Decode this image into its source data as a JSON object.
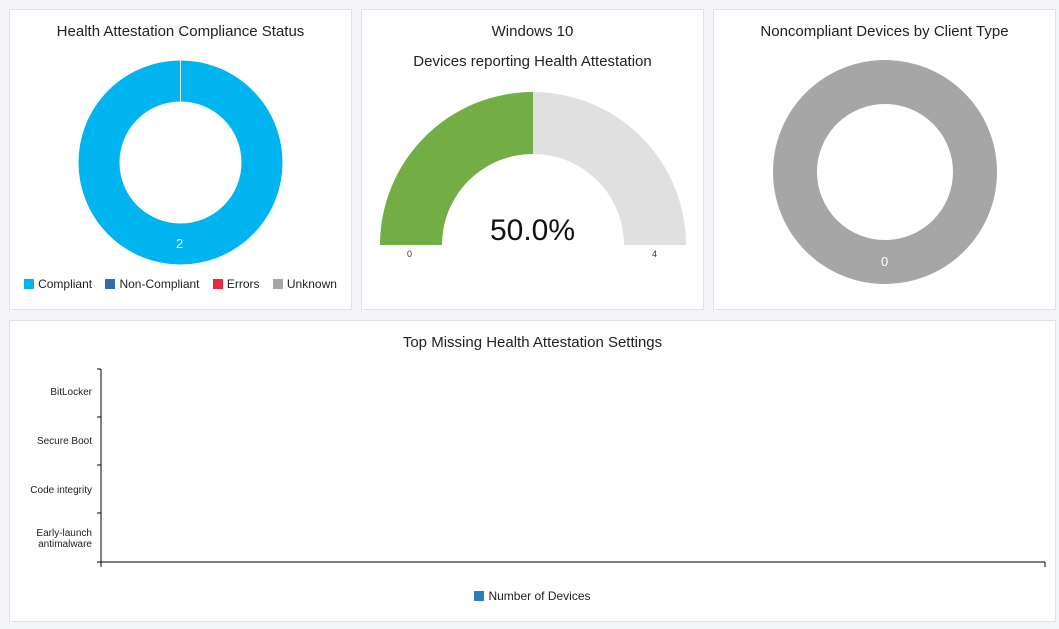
{
  "compliance": {
    "title": "Health Attestation Compliance Status",
    "center_value": "2",
    "legend": [
      {
        "label": "Compliant",
        "color": "#00b4f0"
      },
      {
        "label": "Non-Compliant",
        "color": "#2f6eaa"
      },
      {
        "label": "Errors",
        "color": "#e8283c"
      },
      {
        "label": "Unknown",
        "color": "#a6a6a6"
      }
    ],
    "chart_data": {
      "type": "pie",
      "title": "Health Attestation Compliance Status",
      "categories": [
        "Compliant",
        "Non-Compliant",
        "Errors",
        "Unknown"
      ],
      "values": [
        2,
        0,
        0,
        0
      ]
    }
  },
  "windows10": {
    "title": "Windows 10",
    "subtitle": "Devices reporting Health Attestation",
    "value_text": "50.0%",
    "min_label": "0",
    "max_label": "4",
    "fill_color": "#72ad46",
    "track_color": "#e0e0e0",
    "chart_data": {
      "type": "gauge",
      "value": 2,
      "min": 0,
      "max": 4,
      "percent": 50.0
    }
  },
  "noncompliant": {
    "title": "Noncompliant Devices by Client Type",
    "center_value": "0",
    "color": "#a6a6a6",
    "chart_data": {
      "type": "pie",
      "title": "Noncompliant Devices by Client Type",
      "values": [
        0
      ]
    }
  },
  "missing_settings": {
    "title": "Top Missing Health Attestation Settings",
    "categories": [
      "BitLocker",
      "Secure Boot",
      "Code integrity",
      "Early-launch antimalware"
    ],
    "legend_label": "Number of Devices",
    "legend_color": "#2d7dbb",
    "chart_data": {
      "type": "bar",
      "title": "Top Missing Health Attestation Settings",
      "categories": [
        "BitLocker",
        "Secure Boot",
        "Code integrity",
        "Early-launch antimalware"
      ],
      "series": [
        {
          "name": "Number of Devices",
          "values": [
            0,
            0,
            0,
            0
          ]
        }
      ]
    }
  }
}
